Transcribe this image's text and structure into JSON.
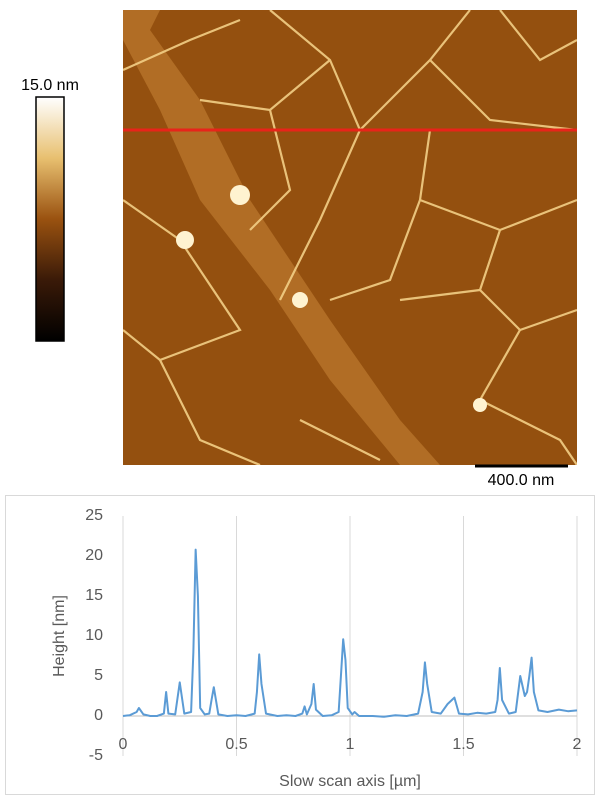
{
  "image": {
    "colorbar_label": "15.0 nm",
    "scale_bar_label": "400.0 nm"
  },
  "chart_data": {
    "type": "line",
    "xlabel": "Slow scan axis [µm]",
    "ylabel": "Height [nm]",
    "x": [
      0,
      0.03,
      0.06,
      0.07,
      0.09,
      0.12,
      0.15,
      0.18,
      0.19,
      0.2,
      0.23,
      0.25,
      0.27,
      0.3,
      0.31,
      0.32,
      0.33,
      0.34,
      0.36,
      0.38,
      0.39,
      0.4,
      0.42,
      0.46,
      0.5,
      0.54,
      0.58,
      0.59,
      0.6,
      0.61,
      0.63,
      0.68,
      0.72,
      0.76,
      0.79,
      0.8,
      0.81,
      0.83,
      0.84,
      0.85,
      0.88,
      0.92,
      0.95,
      0.96,
      0.97,
      0.98,
      0.99,
      1.01,
      1.02,
      1.04,
      1.1,
      1.15,
      1.2,
      1.25,
      1.3,
      1.32,
      1.33,
      1.34,
      1.36,
      1.4,
      1.43,
      1.46,
      1.48,
      1.52,
      1.56,
      1.6,
      1.64,
      1.65,
      1.66,
      1.67,
      1.7,
      1.73,
      1.75,
      1.77,
      1.78,
      1.79,
      1.8,
      1.81,
      1.83,
      1.87,
      1.92,
      1.96,
      2.0
    ],
    "values": [
      0,
      0.1,
      0.5,
      1,
      0.2,
      0,
      0,
      0.3,
      3,
      0.3,
      0.2,
      4.2,
      0.3,
      0.5,
      8,
      20.8,
      15,
      1,
      0.2,
      0.3,
      2,
      3.6,
      0.2,
      0,
      0.1,
      0,
      0.3,
      3,
      7.7,
      4,
      0.3,
      0,
      0.1,
      0,
      0.3,
      1.2,
      0.2,
      1.5,
      4,
      0.8,
      0,
      0.1,
      0.5,
      5,
      9.6,
      7,
      1,
      0.2,
      0.5,
      0,
      0,
      -0.1,
      0.1,
      0,
      0.3,
      3,
      6.7,
      4,
      0.5,
      0.3,
      1.5,
      2.3,
      0.3,
      0.2,
      0.4,
      0.3,
      0.5,
      2,
      6,
      2,
      0.3,
      0.5,
      5,
      2.5,
      3,
      5,
      7.3,
      3,
      0.7,
      0.5,
      0.8,
      0.6,
      0.7
    ],
    "color": "#5b9bd5",
    "xlim": [
      0,
      2
    ],
    "xticks": [
      0,
      0.5,
      1,
      1.5,
      2
    ],
    "ylim": [
      -5,
      25
    ],
    "yticks": [
      -5,
      0,
      5,
      10,
      15,
      20,
      25
    ],
    "grid": "x"
  }
}
